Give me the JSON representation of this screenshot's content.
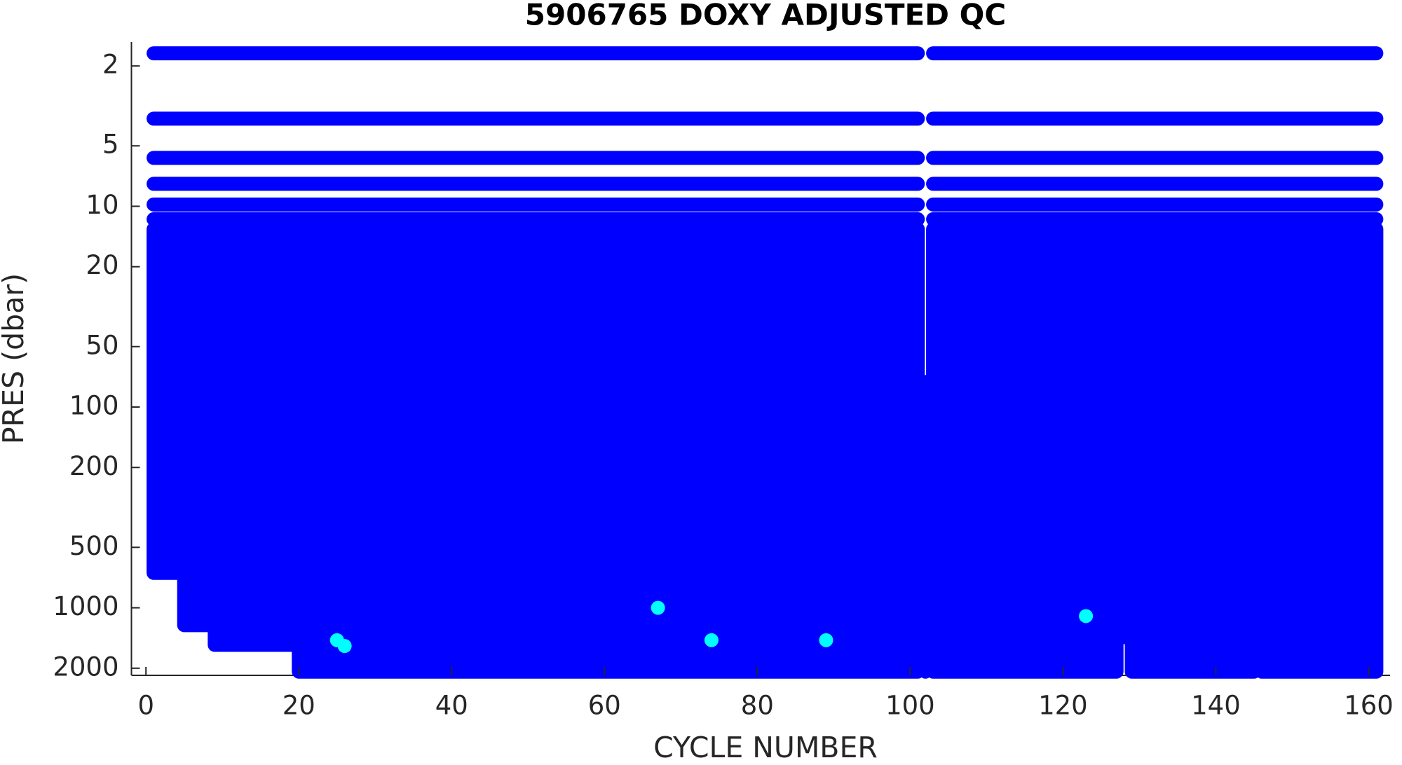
{
  "chart_data": {
    "type": "profile-scatter",
    "title": "5906765  DOXY ADJUSTED QC",
    "x_label": "CYCLE NUMBER",
    "y_label": "PRES (dbar)",
    "xlim": [
      -1.9,
      162.8
    ],
    "xticks": [
      0,
      20,
      40,
      60,
      80,
      100,
      120,
      140,
      160
    ],
    "ylim": [
      1.52,
      2170
    ],
    "yticks": [
      2,
      5,
      10,
      20,
      50,
      100,
      200,
      500,
      1000,
      2000
    ],
    "y_scale": "log",
    "y_reversed": true,
    "good_color": "#0000ff",
    "flag_color": "#00ffff",
    "profiles": {
      "cycle_start": [
        1,
        5,
        9,
        20,
        102,
        103,
        128,
        129,
        146
      ],
      "cycle_end": [
        4,
        8,
        19,
        101,
        102,
        127,
        128,
        145,
        161
      ],
      "top": [
        13,
        13,
        13,
        13,
        75,
        13,
        13,
        13,
        13
      ],
      "bottom": [
        670,
        1220,
        1530,
        2080,
        2080,
        2080,
        1400,
        2080,
        2080
      ]
    },
    "rows": {
      "pressure": [
        1.73,
        3.66,
        5.74,
        7.73,
        9.8,
        11.6,
        1.73,
        3.66,
        5.74,
        7.73,
        9.8,
        11.6
      ],
      "cycle_start": [
        1,
        1,
        1,
        1,
        1,
        1,
        103,
        103,
        103,
        103,
        103,
        103
      ],
      "cycle_end": [
        101,
        101,
        101,
        101,
        101,
        101,
        161,
        161,
        161,
        161,
        161,
        161
      ]
    },
    "flagged": {
      "x": [
        25,
        26,
        67,
        74,
        89,
        123
      ],
      "y": [
        1450,
        1550,
        1000,
        1450,
        1450,
        1100
      ]
    }
  }
}
